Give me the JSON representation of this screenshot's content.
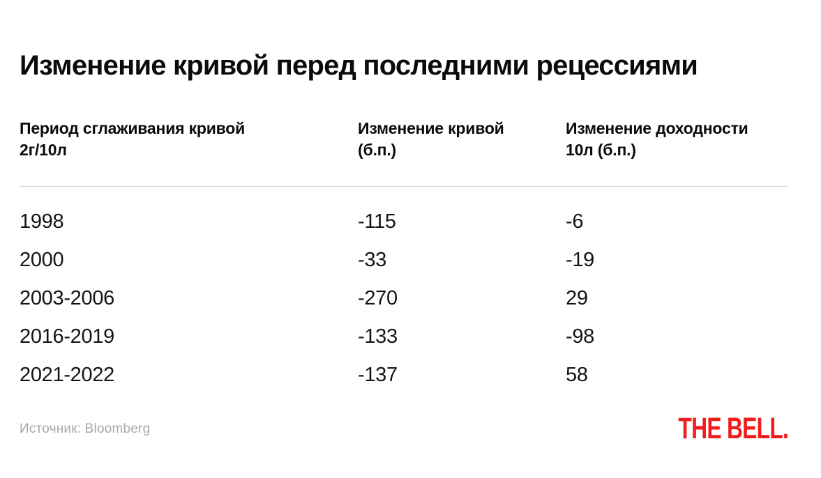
{
  "title": "Изменение кривой перед последними рецессиями",
  "table_header": {
    "columns": [
      {
        "label": "Период сглаживания кривой",
        "sublabel": "2г/10л"
      },
      {
        "label": "Изменение кривой",
        "sublabel": "(б.п.)"
      },
      {
        "label": "Изменение доходности",
        "sublabel": "10л (б.п.)"
      }
    ]
  },
  "chart_data": {
    "type": "table",
    "title": "Изменение кривой перед последними рецессиями",
    "columns": [
      "Период сглаживания кривой 2г/10л",
      "Изменение кривой (б.п.)",
      "Изменение доходности 10л (б.п.)"
    ],
    "rows": [
      [
        "1998",
        "-115",
        "-6"
      ],
      [
        "2000",
        "-33",
        "-19"
      ],
      [
        "2003-2006",
        "-270",
        "29"
      ],
      [
        "2016-2019",
        "-133",
        "-98"
      ],
      [
        "2021-2022",
        "-137",
        "58"
      ]
    ],
    "layout_hints": {
      "grid": "off",
      "header_divider": "on"
    }
  },
  "footer": {
    "source": "Источник: Bloomberg",
    "logo_text": "THE BELL."
  },
  "colors": {
    "accent_red": "#F21C1C",
    "text": "#0B0B0B",
    "data_text": "#141414",
    "muted_gray": "#A8A8A8",
    "divider": "#D5D5D5",
    "background": "#FFFFFF"
  }
}
